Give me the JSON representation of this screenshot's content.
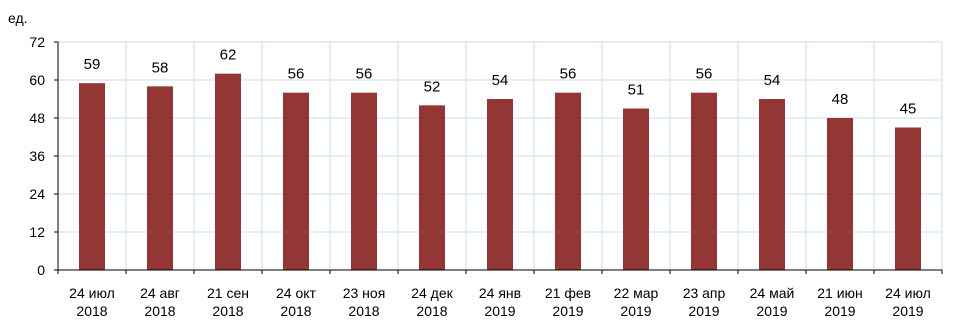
{
  "chart_data": {
    "type": "bar",
    "unit_label": "ед.",
    "categories": [
      [
        "24 июл",
        "2018"
      ],
      [
        "24 авг",
        "2018"
      ],
      [
        "21 сен",
        "2018"
      ],
      [
        "24 окт",
        "2018"
      ],
      [
        "23 ноя",
        "2018"
      ],
      [
        "24 дек",
        "2018"
      ],
      [
        "24 янв",
        "2019"
      ],
      [
        "21 фев",
        "2019"
      ],
      [
        "22 мар",
        "2019"
      ],
      [
        "23 апр",
        "2019"
      ],
      [
        "24 май",
        "2019"
      ],
      [
        "21 июн",
        "2019"
      ],
      [
        "24 июл",
        "2019"
      ]
    ],
    "values": [
      59,
      58,
      62,
      56,
      56,
      52,
      54,
      56,
      51,
      56,
      54,
      48,
      45
    ],
    "ylim": [
      0,
      72
    ],
    "yticks": [
      0,
      12,
      24,
      36,
      48,
      60,
      72
    ],
    "grid": true,
    "bar_color": "#943634",
    "grid_color": "#c6dde9"
  }
}
